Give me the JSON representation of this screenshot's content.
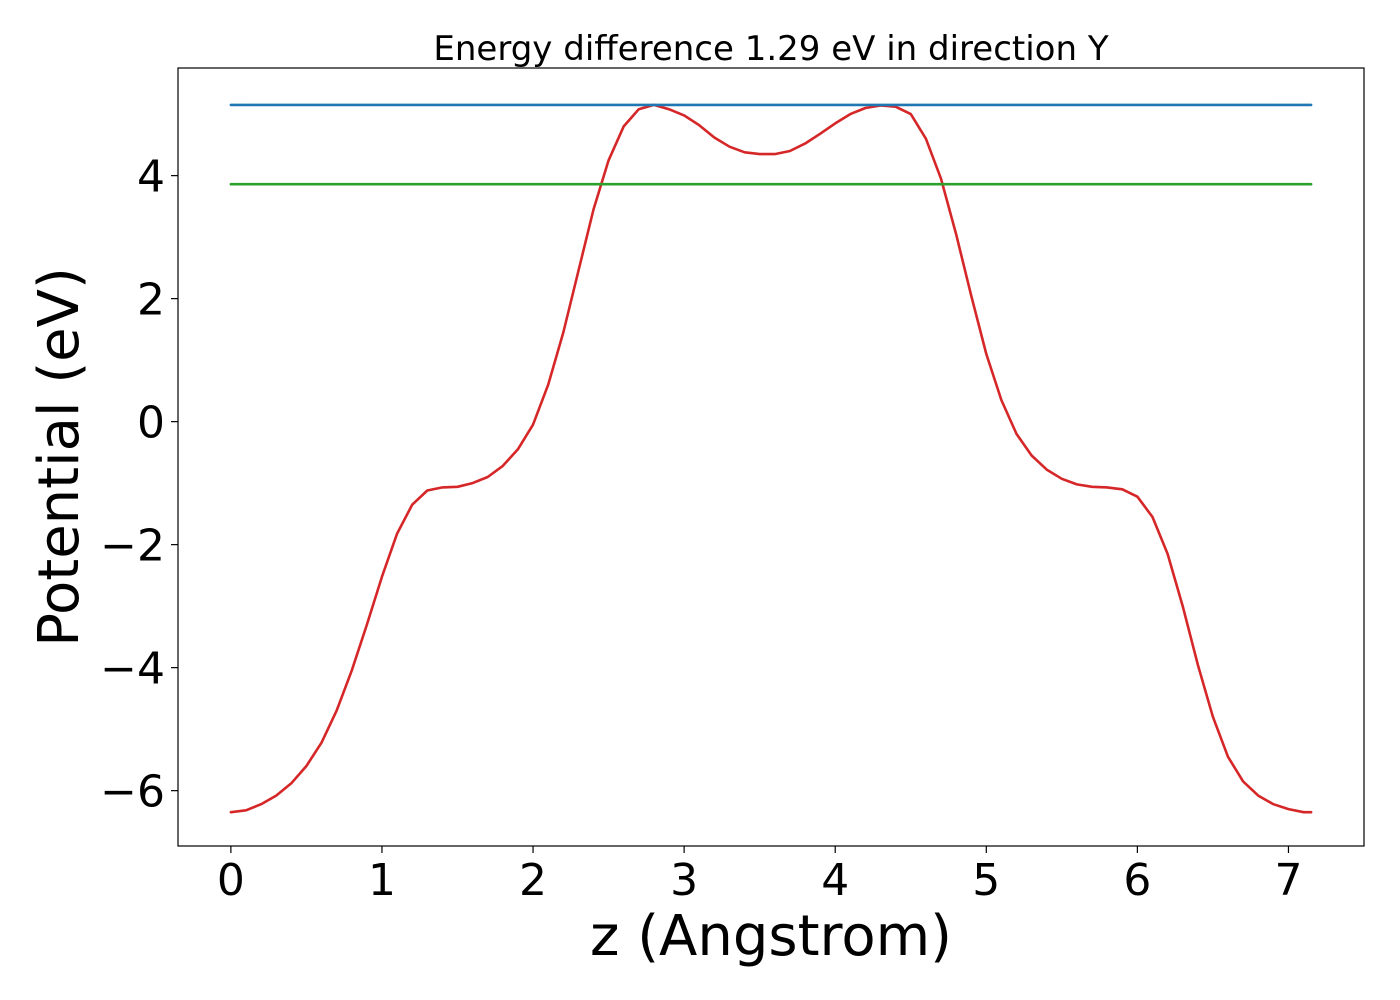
{
  "chart_data": {
    "type": "line",
    "title": "Energy difference 1.29 eV in direction Y",
    "xlabel": "z (Angstrom)",
    "ylabel": "Potential (eV)",
    "xlim": [
      -0.35,
      7.5
    ],
    "ylim": [
      -6.9,
      5.75
    ],
    "xticks": [
      0,
      1,
      2,
      3,
      4,
      5,
      6,
      7
    ],
    "xtick_labels": [
      "0",
      "1",
      "2",
      "3",
      "4",
      "5",
      "6",
      "7"
    ],
    "yticks": [
      4,
      2,
      0,
      -2,
      -4,
      -6
    ],
    "ytick_labels": [
      "4",
      "2",
      "0",
      "−2",
      "−4",
      "−6"
    ],
    "grid": false,
    "legend": "none",
    "series": [
      {
        "color": "#d62728",
        "x": [
          0,
          0.1,
          0.2,
          0.3,
          0.4,
          0.5,
          0.6,
          0.7,
          0.8,
          0.9,
          1.0,
          1.1,
          1.2,
          1.3,
          1.4,
          1.5,
          1.6,
          1.7,
          1.8,
          1.9,
          2.0,
          2.1,
          2.2,
          2.3,
          2.4,
          2.5,
          2.6,
          2.7,
          2.8,
          2.9,
          3.0,
          3.1,
          3.2,
          3.3,
          3.4,
          3.5,
          3.6,
          3.7,
          3.8,
          3.9,
          4.0,
          4.1,
          4.2,
          4.3,
          4.4,
          4.5,
          4.6,
          4.7,
          4.8,
          4.9,
          5.0,
          5.1,
          5.2,
          5.3,
          5.4,
          5.5,
          5.6,
          5.7,
          5.8,
          5.9,
          6.0,
          6.1,
          6.2,
          6.3,
          6.4,
          6.5,
          6.6,
          6.7,
          6.8,
          6.9,
          7.0,
          7.1,
          7.15
        ],
        "y": [
          -6.35,
          -6.32,
          -6.22,
          -6.08,
          -5.88,
          -5.6,
          -5.22,
          -4.7,
          -4.05,
          -3.3,
          -2.52,
          -1.82,
          -1.35,
          -1.12,
          -1.07,
          -1.06,
          -1.0,
          -0.9,
          -0.72,
          -0.45,
          -0.05,
          0.6,
          1.45,
          2.45,
          3.45,
          4.25,
          4.8,
          5.08,
          5.15,
          5.08,
          4.98,
          4.82,
          4.62,
          4.47,
          4.38,
          4.35,
          4.35,
          4.4,
          4.52,
          4.68,
          4.85,
          5.0,
          5.1,
          5.14,
          5.12,
          5.0,
          4.6,
          3.95,
          3.05,
          2.05,
          1.1,
          0.35,
          -0.2,
          -0.55,
          -0.78,
          -0.93,
          -1.02,
          -1.06,
          -1.07,
          -1.1,
          -1.22,
          -1.55,
          -2.15,
          -3.0,
          -3.95,
          -4.8,
          -5.45,
          -5.85,
          -6.08,
          -6.22,
          -6.3,
          -6.35,
          -6.35
        ]
      },
      {
        "color": "#1f77b4",
        "x": [
          0,
          7.15
        ],
        "y": [
          5.15,
          5.15
        ]
      },
      {
        "color": "#2ca02c",
        "x": [
          0,
          7.15
        ],
        "y": [
          3.86,
          3.86
        ]
      }
    ]
  }
}
